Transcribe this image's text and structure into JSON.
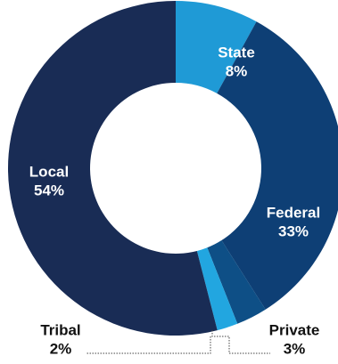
{
  "chart_data": {
    "type": "pie",
    "title": "",
    "categories": [
      "State",
      "Federal",
      "Private",
      "Tribal",
      "Local"
    ],
    "values": [
      8,
      33,
      3,
      2,
      54
    ],
    "display": [
      "8%",
      "33%",
      "3%",
      "2%",
      "54%"
    ],
    "colors": [
      "#1f9ad6",
      "#0e3f75",
      "#0e4f86",
      "#22a6e0",
      "#192c55"
    ],
    "label_colors": [
      "#ffffff",
      "#ffffff",
      "#111111",
      "#111111",
      "#ffffff"
    ],
    "donut": true,
    "legend": "none"
  }
}
